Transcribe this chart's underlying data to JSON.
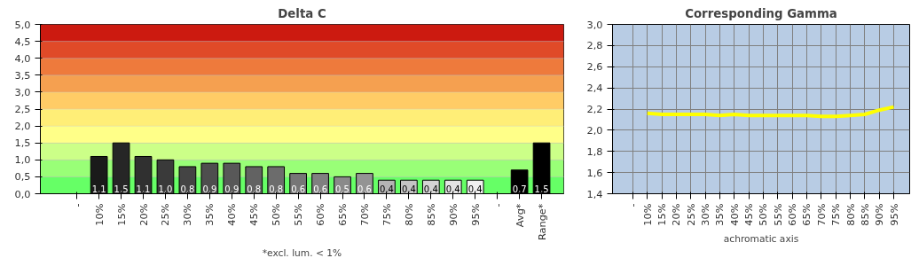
{
  "chart_data": [
    {
      "type": "bar",
      "title": "Delta C",
      "xlabel": "*excl. lum. < 1%",
      "categories": [
        "-",
        "10%",
        "15%",
        "20%",
        "25%",
        "30%",
        "35%",
        "40%",
        "45%",
        "50%",
        "55%",
        "60%",
        "65%",
        "70%",
        "75%",
        "80%",
        "85%",
        "90%",
        "95%",
        "-",
        "Avg*",
        "Range*"
      ],
      "values": [
        null,
        1.1,
        1.5,
        1.1,
        1.0,
        0.8,
        0.9,
        0.9,
        0.8,
        0.8,
        0.6,
        0.6,
        0.5,
        0.6,
        0.4,
        0.4,
        0.4,
        0.4,
        0.4,
        null,
        0.7,
        1.5
      ],
      "value_labels": [
        null,
        "1,1",
        "1,5",
        "1,1",
        "1,0",
        "0,8",
        "0,9",
        "0,9",
        "0,8",
        "0,8",
        "0,6",
        "0,6",
        "0,5",
        "0,6",
        "0,4",
        "0,4",
        "0,4",
        "0,4",
        "0,4",
        null,
        "0,7",
        "1,5"
      ],
      "colors": [
        null,
        "#1a1a1a",
        "#262626",
        "#303030",
        "#3a3a3a",
        "#444444",
        "#4e4e4e",
        "#585858",
        "#626262",
        "#6c6c6c",
        "#767676",
        "#808080",
        "#8a8a8a",
        "#949494",
        "#b4b4b4",
        "#c4c4c4",
        "#d4d4d4",
        "#e4e4e4",
        "#f0f0f0",
        null,
        "#000000",
        "#000000"
      ],
      "ylim": [
        0,
        5
      ],
      "yticks": [
        {
          "value": 0,
          "label": "0,0"
        },
        {
          "value": 0.5,
          "label": "0,5"
        },
        {
          "value": 1,
          "label": "1,0"
        },
        {
          "value": 1.5,
          "label": "1,5"
        },
        {
          "value": 2,
          "label": "2,0"
        },
        {
          "value": 2.5,
          "label": "2,5"
        },
        {
          "value": 3,
          "label": "3,0"
        },
        {
          "value": 3.5,
          "label": "3,5"
        },
        {
          "value": 4,
          "label": "4,0"
        },
        {
          "value": 4.5,
          "label": "4,5"
        },
        {
          "value": 5,
          "label": "5,0"
        }
      ],
      "grid": "y",
      "bands": [
        {
          "axis": "y",
          "from": 0,
          "to": 0.5,
          "color": "#66ff66"
        },
        {
          "axis": "y",
          "from": 0.5,
          "to": 1,
          "color": "#99ff77"
        },
        {
          "axis": "y",
          "from": 1,
          "to": 1.5,
          "color": "#ccff88"
        },
        {
          "axis": "y",
          "from": 1.5,
          "to": 2,
          "color": "#ffff88"
        },
        {
          "axis": "y",
          "from": 2,
          "to": 2.5,
          "color": "#ffee77"
        },
        {
          "axis": "y",
          "from": 2.5,
          "to": 3,
          "color": "#ffcc66"
        },
        {
          "axis": "y",
          "from": 3,
          "to": 3.5,
          "color": "#f5a050"
        },
        {
          "axis": "y",
          "from": 3.5,
          "to": 4,
          "color": "#ee7a3c"
        },
        {
          "axis": "y",
          "from": 4,
          "to": 4.5,
          "color": "#e04a28"
        },
        {
          "axis": "y",
          "from": 4.5,
          "to": 5,
          "color": "#cc1a10"
        }
      ]
    },
    {
      "type": "line",
      "title": "Corresponding Gamma",
      "xlabel": "achromatic axis",
      "categories": [
        "-",
        "10%",
        "15%",
        "20%",
        "25%",
        "30%",
        "35%",
        "40%",
        "45%",
        "50%",
        "55%",
        "60%",
        "65%",
        "70%",
        "75%",
        "80%",
        "85%",
        "90%",
        "95%"
      ],
      "series": [
        {
          "color": "#ffff00",
          "values": [
            null,
            2.16,
            2.15,
            2.15,
            2.15,
            2.15,
            2.14,
            2.15,
            2.14,
            2.14,
            2.14,
            2.14,
            2.14,
            2.13,
            2.13,
            2.14,
            2.15,
            2.19,
            2.22
          ]
        }
      ],
      "ylim": [
        1.4,
        3.0
      ],
      "yticks": [
        {
          "value": 1.4,
          "label": "1,4"
        },
        {
          "value": 1.6,
          "label": "1,6"
        },
        {
          "value": 1.8,
          "label": "1,8"
        },
        {
          "value": 2.0,
          "label": "2,0"
        },
        {
          "value": 2.2,
          "label": "2,2"
        },
        {
          "value": 2.4,
          "label": "2,4"
        },
        {
          "value": 2.6,
          "label": "2,6"
        },
        {
          "value": 2.8,
          "label": "2,8"
        },
        {
          "value": 3.0,
          "label": "3,0"
        }
      ],
      "grid": true,
      "marker": "none"
    }
  ]
}
